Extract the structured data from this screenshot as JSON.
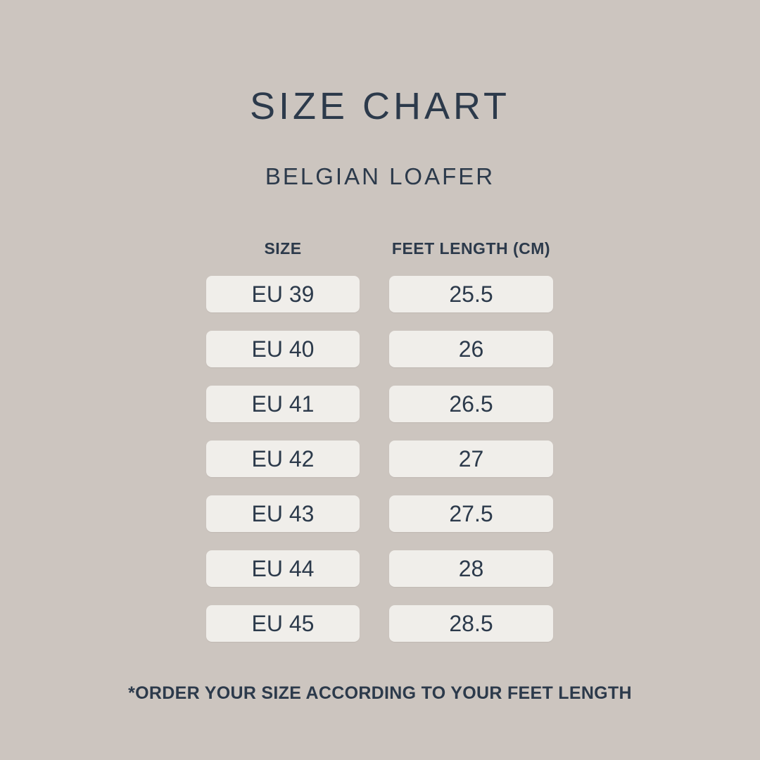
{
  "chart_data": {
    "type": "table",
    "title": "SIZE CHART",
    "subtitle": "BELGIAN LOAFER",
    "columns": [
      "SIZE",
      "FEET LENGTH (CM)"
    ],
    "rows": [
      [
        "EU 39",
        "25.5"
      ],
      [
        "EU 40",
        "26"
      ],
      [
        "EU 41",
        "26.5"
      ],
      [
        "EU 42",
        "27"
      ],
      [
        "EU 43",
        "27.5"
      ],
      [
        "EU 44",
        "28"
      ],
      [
        "EU 45",
        "28.5"
      ]
    ],
    "footnote": "*ORDER YOUR SIZE ACCORDING TO YOUR FEET LENGTH"
  },
  "colors": {
    "background": "#CCC5BF",
    "cell_background": "#F0EEEA",
    "text": "#2C3A4B"
  }
}
